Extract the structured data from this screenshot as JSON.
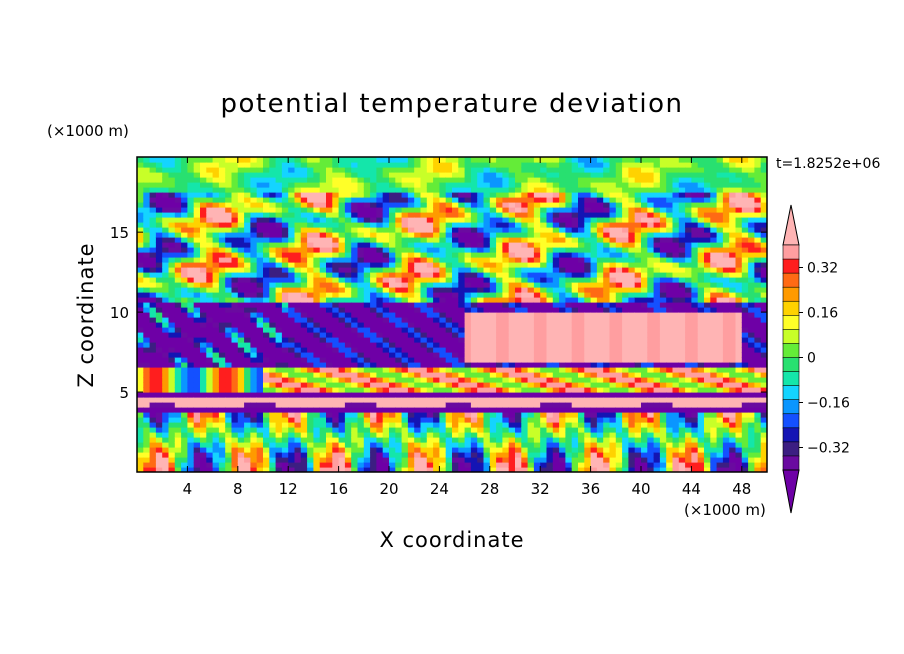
{
  "chart_data": {
    "type": "heatmap",
    "title": "potential temperature deviation",
    "xlabel": "X coordinate",
    "ylabel": "Z coordinate",
    "x_units": "(×1000 m)",
    "y_units": "(×1000 m)",
    "time_label": "t=1.8252e+06",
    "xlim": [
      0,
      50
    ],
    "ylim": [
      0,
      19.7
    ],
    "xticks": [
      "4",
      "8",
      "12",
      "16",
      "20",
      "24",
      "28",
      "32",
      "36",
      "40",
      "44",
      "48"
    ],
    "yticks": [
      "5",
      "10",
      "15"
    ],
    "colorbar": {
      "levels": [
        -0.4,
        -0.36,
        -0.32,
        -0.28,
        -0.24,
        -0.2,
        -0.16,
        -0.12,
        -0.08,
        -0.04,
        0,
        0.04,
        0.08,
        0.12,
        0.16,
        0.2,
        0.24,
        0.28,
        0.32,
        0.36,
        0.4
      ],
      "tick_labels": [
        "0.32",
        "0.16",
        "0",
        "−0.16",
        "−0.32"
      ],
      "colors": [
        "#ff9ea0",
        "#ff1e1e",
        "#ff6a14",
        "#ff9a00",
        "#ffd200",
        "#ffff28",
        "#c8ff28",
        "#64ec38",
        "#28e070",
        "#14e6aa",
        "#14d4ff",
        "#0a96ff",
        "#1450ff",
        "#1414b4",
        "#3c1e82",
        "#6a0aa0"
      ],
      "over_color": "#ffb4b4",
      "under_color": "#6e00a6"
    }
  }
}
